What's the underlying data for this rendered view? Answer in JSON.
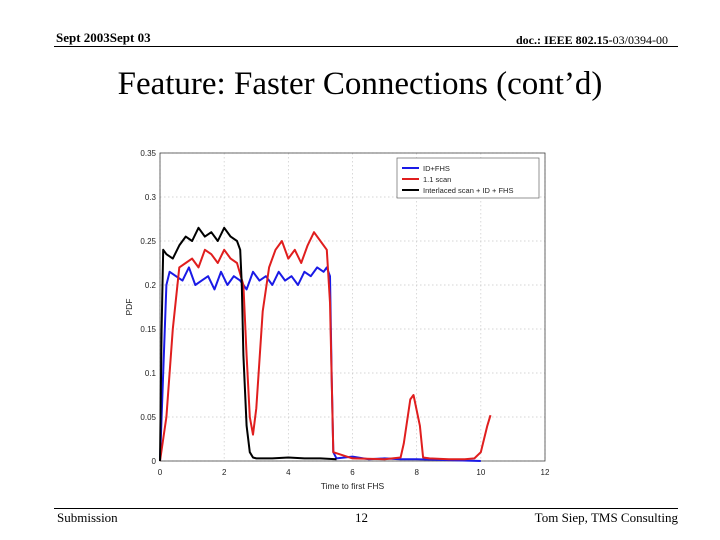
{
  "header": {
    "date": "Sept 2003Sept 03",
    "doc_prefix": "doc.: IEEE 802.15-",
    "doc_number": "03/0394-00"
  },
  "title": "Feature: Faster Connections (cont’d)",
  "footer": {
    "left": "Submission",
    "page": "12",
    "author": "Tom Siep, TMS Consulting"
  },
  "chart_data": {
    "type": "line",
    "title": "",
    "xlabel": "Time to first FHS",
    "ylabel": "PDF",
    "xlim": [
      0,
      12
    ],
    "ylim": [
      0,
      0.35
    ],
    "xticks": [
      "0",
      "2",
      "4",
      "6",
      "8",
      "10",
      "12"
    ],
    "yticks": [
      "0",
      "0.05",
      "0.1",
      "0.15",
      "0.2",
      "0.25",
      "0.3",
      "0.35"
    ],
    "grid": true,
    "legend_position": "top-right",
    "series": [
      {
        "name": "ID+FHS",
        "color": "#1a1ae6",
        "x": [
          0,
          0.1,
          0.2,
          0.3,
          0.5,
          0.7,
          0.9,
          1.1,
          1.3,
          1.5,
          1.7,
          1.9,
          2.1,
          2.3,
          2.5,
          2.7,
          2.9,
          3.1,
          3.3,
          3.5,
          3.7,
          3.9,
          4.1,
          4.3,
          4.5,
          4.7,
          4.9,
          5.1,
          5.2,
          5.3,
          5.35,
          5.4,
          5.5,
          6.0,
          6.5,
          7.0,
          7.5,
          8.0,
          9.0,
          10.0
        ],
        "y": [
          0,
          0.1,
          0.2,
          0.215,
          0.21,
          0.205,
          0.22,
          0.2,
          0.205,
          0.21,
          0.195,
          0.215,
          0.2,
          0.21,
          0.205,
          0.195,
          0.215,
          0.205,
          0.21,
          0.2,
          0.215,
          0.205,
          0.21,
          0.2,
          0.215,
          0.21,
          0.22,
          0.215,
          0.22,
          0.21,
          0.1,
          0.01,
          0.003,
          0.005,
          0.002,
          0.003,
          0.002,
          0.002,
          0.001,
          0.0
        ]
      },
      {
        "name": "1.1 scan",
        "color": "#e01e1e",
        "x": [
          0,
          0.2,
          0.4,
          0.6,
          0.8,
          1.0,
          1.2,
          1.4,
          1.6,
          1.8,
          2.0,
          2.2,
          2.4,
          2.6,
          2.7,
          2.8,
          2.9,
          3.0,
          3.2,
          3.4,
          3.6,
          3.8,
          4.0,
          4.2,
          4.4,
          4.6,
          4.8,
          5.0,
          5.2,
          5.3,
          5.4,
          6.0,
          7.0,
          7.5,
          7.6,
          7.8,
          7.9,
          8.1,
          8.2,
          8.4,
          9.0,
          9.5,
          9.8,
          10.0,
          10.2,
          10.3
        ],
        "y": [
          0,
          0.05,
          0.15,
          0.22,
          0.225,
          0.23,
          0.22,
          0.24,
          0.235,
          0.225,
          0.24,
          0.23,
          0.225,
          0.2,
          0.12,
          0.05,
          0.03,
          0.06,
          0.17,
          0.22,
          0.24,
          0.25,
          0.23,
          0.24,
          0.225,
          0.245,
          0.26,
          0.25,
          0.24,
          0.18,
          0.01,
          0.003,
          0.002,
          0.004,
          0.02,
          0.07,
          0.075,
          0.04,
          0.004,
          0.003,
          0.002,
          0.002,
          0.003,
          0.01,
          0.04,
          0.052
        ]
      },
      {
        "name": "Interlaced scan + ID + FHS",
        "color": "#000000",
        "x": [
          0,
          0.05,
          0.1,
          0.2,
          0.4,
          0.6,
          0.8,
          1.0,
          1.2,
          1.4,
          1.6,
          1.8,
          2.0,
          2.2,
          2.4,
          2.5,
          2.55,
          2.6,
          2.7,
          2.8,
          2.9,
          3.0,
          3.5,
          4.0,
          4.5,
          5.0,
          5.5
        ],
        "y": [
          0,
          0.15,
          0.24,
          0.235,
          0.23,
          0.245,
          0.255,
          0.25,
          0.265,
          0.255,
          0.26,
          0.25,
          0.265,
          0.255,
          0.25,
          0.24,
          0.2,
          0.12,
          0.04,
          0.01,
          0.004,
          0.003,
          0.003,
          0.004,
          0.003,
          0.003,
          0.002
        ]
      }
    ]
  }
}
